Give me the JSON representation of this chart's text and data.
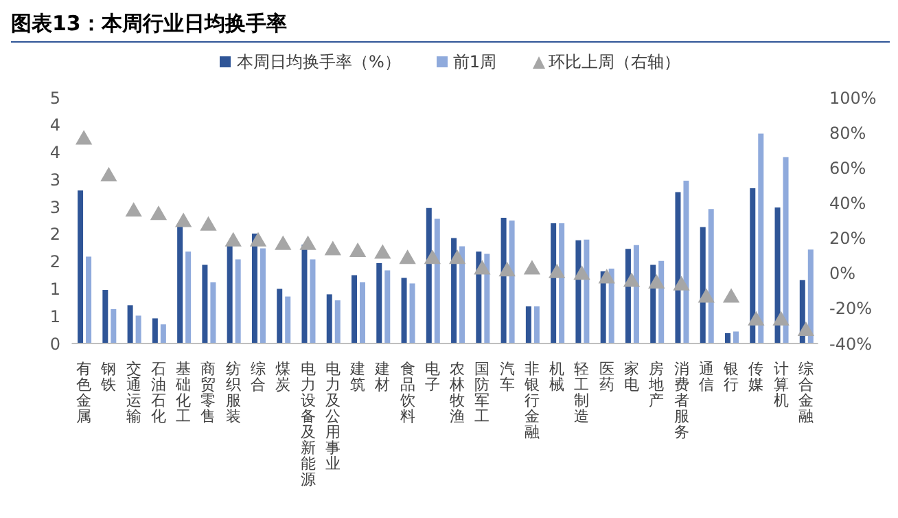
{
  "chart_data": {
    "type": "bar",
    "title": "图表13：本周行业日均换手率",
    "categories": [
      "有色金属",
      "钢铁",
      "交通运输",
      "石油石化",
      "基础化工",
      "商贸零售",
      "纺织服装",
      "综合",
      "煤炭",
      "电力设备及新能源",
      "电力及公用事业",
      "建筑",
      "建材",
      "食品饮料",
      "电子",
      "农林牧渔",
      "国防军工",
      "汽车",
      "非银行金融",
      "机械",
      "轻工制造",
      "医药",
      "家电",
      "房地产",
      "消费者服务",
      "通信",
      "银行",
      "传媒",
      "计算机",
      "综合金融"
    ],
    "series": [
      {
        "name": "本周日均换手率（%）",
        "color": "#2f5597",
        "values": [
          2.8,
          0.98,
          0.7,
          0.46,
          2.17,
          1.44,
          1.81,
          2.01,
          1.0,
          1.81,
          0.9,
          1.25,
          1.47,
          1.2,
          2.48,
          1.93,
          1.68,
          2.3,
          0.68,
          2.2,
          1.89,
          1.32,
          1.73,
          1.44,
          2.77,
          2.13,
          0.19,
          2.84,
          2.49,
          1.16
        ]
      },
      {
        "name": "前1周",
        "color": "#8faadc",
        "values": [
          1.59,
          0.63,
          0.51,
          0.35,
          1.68,
          1.12,
          1.54,
          1.74,
          0.86,
          1.54,
          0.79,
          1.12,
          1.34,
          1.1,
          2.28,
          1.78,
          1.64,
          2.25,
          0.68,
          2.2,
          1.9,
          1.37,
          1.8,
          1.51,
          2.98,
          2.46,
          0.22,
          3.84,
          3.41,
          1.72
        ]
      },
      {
        "name": "环比上周（右轴）",
        "type": "scatter",
        "axis": "y2",
        "color": "#a6a6a6",
        "marker": "triangle",
        "values": [
          76,
          55,
          35,
          33,
          29,
          27,
          18,
          18,
          16,
          16,
          13,
          12,
          11,
          8,
          8,
          8,
          2,
          1,
          2,
          0,
          -1,
          -3,
          -5,
          -6,
          -7,
          -14,
          -14,
          -27,
          -27,
          -33
        ]
      }
    ],
    "ylim": [
      0,
      4.5
    ],
    "yticks": [
      {
        "value": 0,
        "label": "0"
      },
      {
        "value": 0.5,
        "label": "1"
      },
      {
        "value": 1,
        "label": "1"
      },
      {
        "value": 1.5,
        "label": "2"
      },
      {
        "value": 2,
        "label": "2"
      },
      {
        "value": 2.5,
        "label": "3"
      },
      {
        "value": 3,
        "label": "3"
      },
      {
        "value": 3.5,
        "label": "4"
      },
      {
        "value": 4,
        "label": "4"
      },
      {
        "value": 4.5,
        "label": "5"
      }
    ],
    "y2lim": [
      -40,
      100
    ],
    "y2ticks": [
      {
        "value": -40,
        "label": "-40%"
      },
      {
        "value": -20,
        "label": "-20%"
      },
      {
        "value": 0,
        "label": "0%"
      },
      {
        "value": 20,
        "label": "20%"
      },
      {
        "value": 40,
        "label": "40%"
      },
      {
        "value": 60,
        "label": "60%"
      },
      {
        "value": 80,
        "label": "80%"
      },
      {
        "value": 100,
        "label": "100%"
      }
    ],
    "grid": false,
    "legend": "top"
  }
}
